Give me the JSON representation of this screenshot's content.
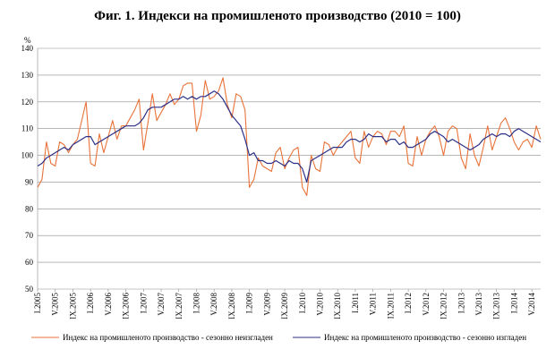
{
  "chart_data": {
    "type": "line",
    "title": "Фиг. 1. Индекси на промишленото производство (2010 = 100)",
    "ylabel": "%",
    "ylim": [
      50,
      140
    ],
    "yticks": [
      50,
      60,
      70,
      80,
      90,
      100,
      110,
      120,
      130,
      140
    ],
    "grid": true,
    "legend_position": "bottom",
    "x_start": "2005-01",
    "tick_labels": [
      "I.2005",
      "V.2005",
      "IX.2005",
      "I.2006",
      "V.2006",
      "IX.2006",
      "I.2007",
      "V.2007",
      "IX.2007",
      "I.2008",
      "V.2008",
      "IX.2008",
      "I.2009",
      "V.2009",
      "IX.2009",
      "I.2010",
      "V.2010",
      "IX.2010",
      "I.2011",
      "V.2011",
      "IX.2011",
      "I.2012",
      "V.2012",
      "IX.2012",
      "I.2013",
      "V.2013",
      "IX.2013",
      "I.2014",
      "V.2014"
    ],
    "series": [
      {
        "name": "Индекс на промишленото производство - сезонно неизгладен",
        "color": "#e8733a",
        "values": [
          88,
          91,
          105,
          97,
          96,
          105,
          104,
          101,
          104,
          106,
          113,
          120,
          97,
          96,
          108,
          101,
          107,
          113,
          106,
          111,
          111,
          114,
          117,
          121,
          102,
          112,
          123,
          113,
          116,
          119,
          123,
          119,
          121,
          126,
          127,
          127,
          109,
          115,
          128,
          121,
          122,
          124,
          129,
          119,
          114,
          123,
          122,
          117,
          88,
          91,
          99,
          96,
          95,
          94,
          101,
          103,
          95,
          99,
          102,
          103,
          88,
          85,
          100,
          95,
          94,
          105,
          104,
          100,
          103,
          105,
          107,
          109,
          99,
          97,
          109,
          103,
          107,
          109,
          108,
          104,
          109,
          109,
          107,
          111,
          97,
          96,
          107,
          100,
          106,
          109,
          111,
          107,
          100,
          109,
          111,
          110,
          99,
          95,
          108,
          100,
          96,
          103,
          111,
          102,
          107,
          112,
          114,
          110,
          105,
          102,
          105,
          106,
          103,
          111,
          106
        ]
      },
      {
        "name": "Индекс на промишленото производство - сезонно изгладен",
        "color": "#2b2f86",
        "values": [
          96,
          97,
          99,
          100,
          101,
          102,
          103,
          102,
          104,
          105,
          106,
          107,
          107,
          104,
          105,
          106,
          107,
          108,
          109,
          110,
          111,
          111,
          111,
          112,
          114,
          117,
          118,
          118,
          118,
          119,
          120,
          121,
          121,
          122,
          121,
          122,
          121,
          122,
          122,
          123,
          124,
          123,
          121,
          118,
          115,
          113,
          111,
          106,
          100,
          101,
          98,
          98,
          97,
          97,
          98,
          97,
          96,
          98,
          97,
          97,
          95,
          90,
          98,
          99,
          100,
          101,
          102,
          103,
          103,
          103,
          105,
          106,
          106,
          105,
          106,
          108,
          107,
          107,
          107,
          105,
          106,
          106,
          104,
          105,
          103,
          103,
          104,
          105,
          106,
          108,
          109,
          108,
          107,
          105,
          106,
          105,
          104,
          103,
          102,
          103,
          104,
          106,
          107,
          108,
          107,
          108,
          108,
          107,
          109,
          110,
          109,
          108,
          107,
          106,
          105
        ]
      }
    ]
  }
}
